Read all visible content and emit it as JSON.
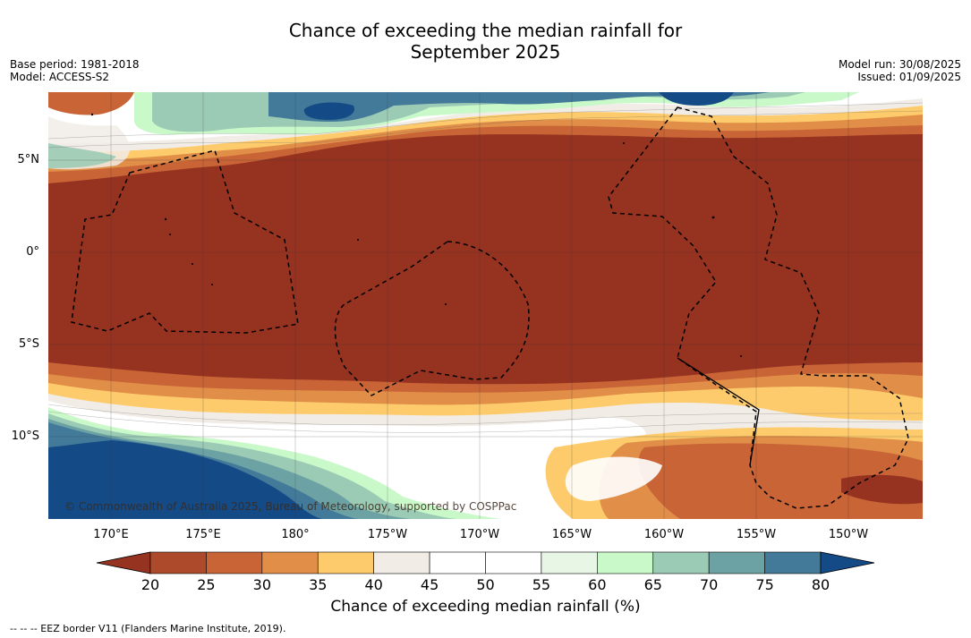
{
  "title_line1": "Chance of exceeding the median rainfall for",
  "title_line2": "September 2025",
  "base_period": "Base period: 1981-2018",
  "model": "Model: ACCESS-S2",
  "model_run": "Model run: 30/08/2025",
  "issued": "Issued: 01/09/2025",
  "copyright": "© Commonwealth of Australia 2025, Bureau of Meteorology, supported by COSPPac",
  "footnote": "-- -- -- EEZ border V11 (Flanders Marine Institute, 2019).",
  "lat_labels": [
    "5°N",
    "0°",
    "5°S",
    "10°S"
  ],
  "lon_labels": [
    "170°E",
    "175°E",
    "180°",
    "175°W",
    "170°W",
    "165°W",
    "160°W",
    "155°W",
    "150°W"
  ],
  "colorbar": {
    "label": "Chance of exceeding median rainfall (%)",
    "ticks": [
      "20",
      "25",
      "30",
      "35",
      "40",
      "45",
      "50",
      "55",
      "60",
      "65",
      "70",
      "75",
      "80"
    ],
    "colors": [
      "#963220",
      "#ad4a2c",
      "#c86436",
      "#e08e48",
      "#fdcb6c",
      "#f1ece6",
      "#ffffff",
      "#ffffff",
      "#e8f6e6",
      "#c9f9c9",
      "#9ccbb5",
      "#6da2a4",
      "#437a99",
      "#144a85"
    ],
    "under_color": "#963220",
    "over_color": "#144a85"
  },
  "map_colors": {
    "very_dry": "#963220",
    "dry": "#c86436",
    "mod_dry": "#e08e48",
    "slight_dry": "#fdcb6c",
    "neutral": "#f1ece6",
    "white": "#ffffff",
    "slight_wet": "#c9f9c9",
    "wet": "#9ccbb5",
    "very_wet": "#437a99",
    "extreme_wet": "#144a85"
  }
}
